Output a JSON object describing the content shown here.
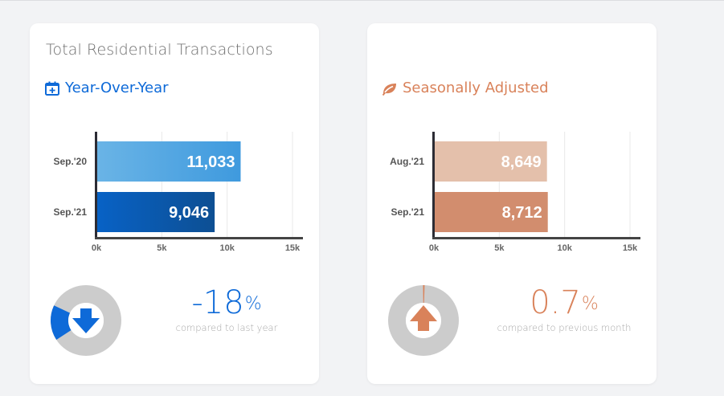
{
  "colors": {
    "yoy_accent": "#0e6ad8",
    "sa_accent": "#d9825a",
    "donut_track": "#cccccc",
    "axis": "#2c2c34"
  },
  "cards": [
    {
      "title": "Total Residential Transactions",
      "subtitle": "Year-Over-Year",
      "icon": "calendar-plus-icon",
      "change": {
        "value": "-18",
        "unit": "%",
        "caption": "compared to last year",
        "direction": "down",
        "fraction": 0.18
      }
    },
    {
      "title": "",
      "subtitle": "Seasonally Adjusted",
      "icon": "leaf-icon",
      "change": {
        "value": "0.7",
        "unit": "%",
        "caption": "compared to previous month",
        "direction": "up",
        "fraction": 0.007
      }
    }
  ],
  "chart_data": [
    {
      "type": "bar",
      "orientation": "horizontal",
      "categories": [
        "Sep.'20",
        "Sep.'21"
      ],
      "values": [
        11033,
        9046
      ],
      "value_labels": [
        "11,033",
        "9,046"
      ],
      "bar_colors": [
        [
          "#6ab4e6",
          "#3f9ade"
        ],
        [
          "#0862c6",
          "#0d4f93"
        ]
      ],
      "xlim": [
        0,
        15800
      ],
      "x_ticks": [
        0,
        5000,
        10000,
        15000
      ],
      "x_tick_labels": [
        "0k",
        "5k",
        "10k",
        "15k"
      ],
      "grid": true,
      "title": "",
      "xlabel": "",
      "ylabel": ""
    },
    {
      "type": "bar",
      "orientation": "horizontal",
      "categories": [
        "Aug.'21",
        "Sep.'21"
      ],
      "values": [
        8649,
        8712
      ],
      "value_labels": [
        "8,649",
        "8,712"
      ],
      "bar_colors": [
        [
          "#e4c0ab",
          "#e4c0ab"
        ],
        [
          "#d28d6e",
          "#d28d6e"
        ]
      ],
      "xlim": [
        0,
        15800
      ],
      "x_ticks": [
        0,
        5000,
        10000,
        15000
      ],
      "x_tick_labels": [
        "0k",
        "5k",
        "10k",
        "15k"
      ],
      "grid": true,
      "title": "",
      "xlabel": "",
      "ylabel": ""
    }
  ]
}
